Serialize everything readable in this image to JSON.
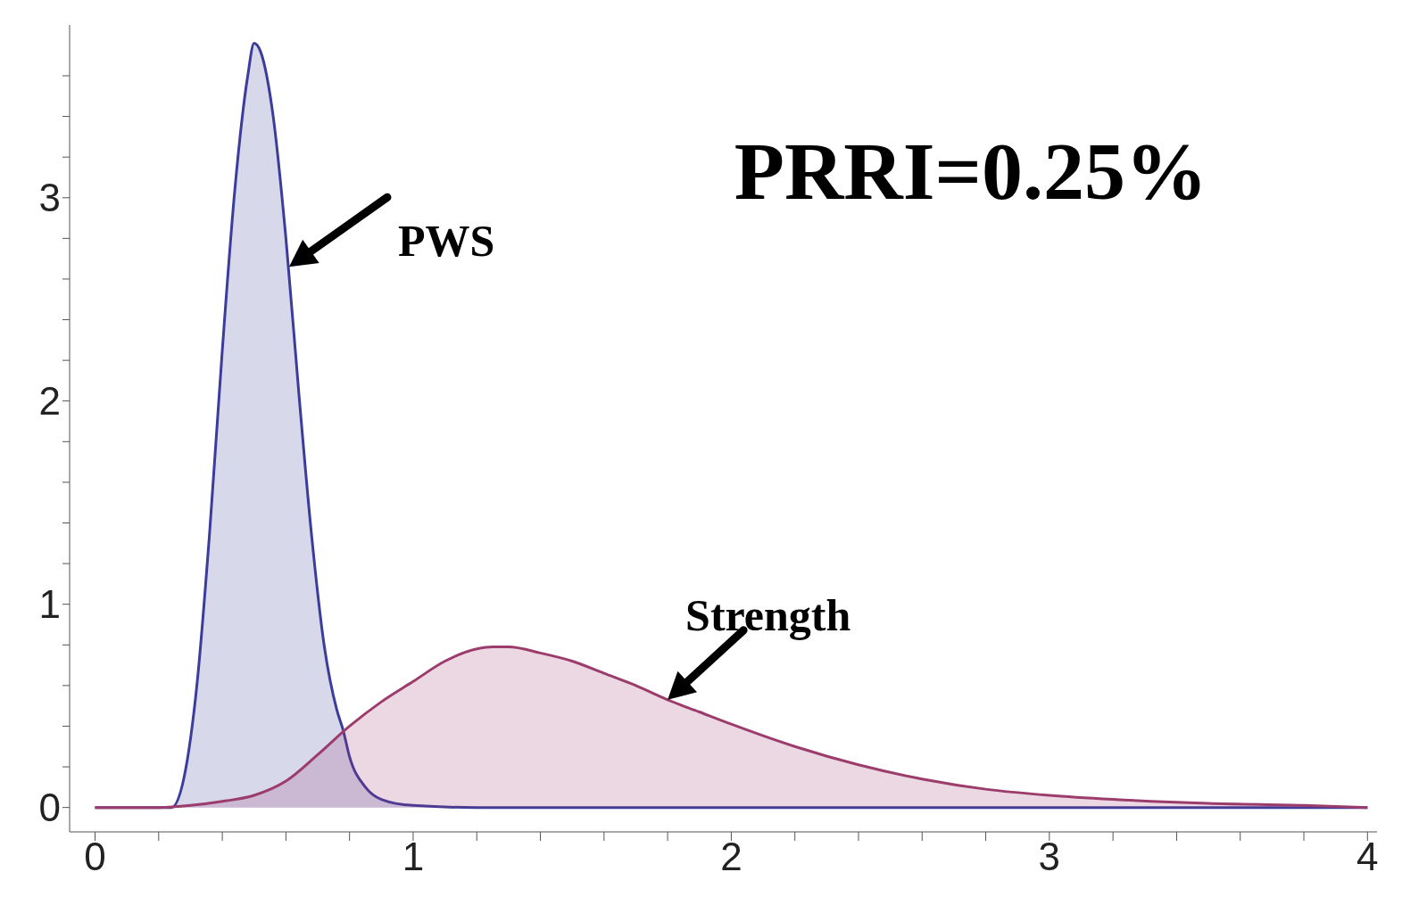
{
  "chart_data": {
    "type": "area",
    "xlim": [
      -0.08,
      4.03
    ],
    "ylim": [
      -0.12,
      3.85
    ],
    "xticks": [
      0,
      {
        "value": 0.2,
        "label": null
      },
      {
        "value": 0.4,
        "label": null
      },
      {
        "value": 0.6,
        "label": null
      },
      {
        "value": 0.8,
        "label": null
      },
      1,
      {
        "value": 1.2,
        "label": null
      },
      {
        "value": 1.4,
        "label": null
      },
      {
        "value": 1.6,
        "label": null
      },
      {
        "value": 1.8,
        "label": null
      },
      2,
      {
        "value": 2.2,
        "label": null
      },
      {
        "value": 2.4,
        "label": null
      },
      {
        "value": 2.6,
        "label": null
      },
      {
        "value": 2.8,
        "label": null
      },
      3,
      {
        "value": 3.2,
        "label": null
      },
      {
        "value": 3.4,
        "label": null
      },
      {
        "value": 3.6,
        "label": null
      },
      {
        "value": 3.8,
        "label": null
      },
      4
    ],
    "yticks": [
      0,
      {
        "value": 0.2,
        "label": null
      },
      {
        "value": 0.4,
        "label": null
      },
      {
        "value": 0.6,
        "label": null
      },
      {
        "value": 0.8,
        "label": null
      },
      1,
      {
        "value": 1.2,
        "label": null
      },
      {
        "value": 1.4,
        "label": null
      },
      {
        "value": 1.6,
        "label": null
      },
      {
        "value": 1.8,
        "label": null
      },
      2,
      {
        "value": 2.2,
        "label": null
      },
      {
        "value": 2.4,
        "label": null
      },
      {
        "value": 2.6,
        "label": null
      },
      {
        "value": 2.8,
        "label": null
      },
      3,
      {
        "value": 3.2,
        "label": null
      },
      {
        "value": 3.4,
        "label": null
      },
      {
        "value": 3.6,
        "label": null
      }
    ],
    "grid": false,
    "legend": false,
    "marker": "none",
    "series": [
      {
        "color": "#3c3c9c",
        "x": [
          0,
          0.2,
          0.24,
          0.28,
          0.32,
          0.36,
          0.4,
          0.44,
          0.48,
          0.5,
          0.52,
          0.56,
          0.6,
          0.64,
          0.68,
          0.72,
          0.76,
          0.78,
          0.8,
          0.85,
          0.9,
          1.0,
          1.2,
          2,
          3,
          4
        ],
        "values": [
          0,
          0,
          0,
          0.15,
          0.6,
          1.35,
          2.25,
          3.05,
          3.6,
          3.76,
          3.72,
          3.4,
          2.8,
          2.05,
          1.35,
          0.8,
          0.48,
          0.38,
          0.25,
          0.1,
          0.04,
          0.01,
          0,
          0,
          0,
          0
        ]
      },
      {
        "color": "#9c3c6c",
        "x": [
          0,
          0.2,
          0.3,
          0.4,
          0.5,
          0.6,
          0.7,
          0.8,
          0.9,
          1.0,
          1.1,
          1.2,
          1.25,
          1.3,
          1.4,
          1.5,
          1.6,
          1.7,
          1.8,
          1.9,
          2.0,
          2.2,
          2.4,
          2.6,
          2.8,
          3.0,
          3.2,
          3.5,
          3.8,
          4.0
        ],
        "values": [
          0,
          0,
          0.01,
          0.03,
          0.06,
          0.13,
          0.26,
          0.4,
          0.52,
          0.62,
          0.72,
          0.78,
          0.79,
          0.79,
          0.76,
          0.72,
          0.66,
          0.6,
          0.53,
          0.47,
          0.41,
          0.3,
          0.21,
          0.14,
          0.09,
          0.06,
          0.04,
          0.02,
          0.01,
          0
        ]
      }
    ],
    "annotations": [
      {
        "text": "PWS",
        "x": 0.61,
        "y": 2.66
      },
      {
        "text": "Strength",
        "x": 1.8,
        "y": 0.53
      },
      "PRRI=0.25%"
    ]
  }
}
